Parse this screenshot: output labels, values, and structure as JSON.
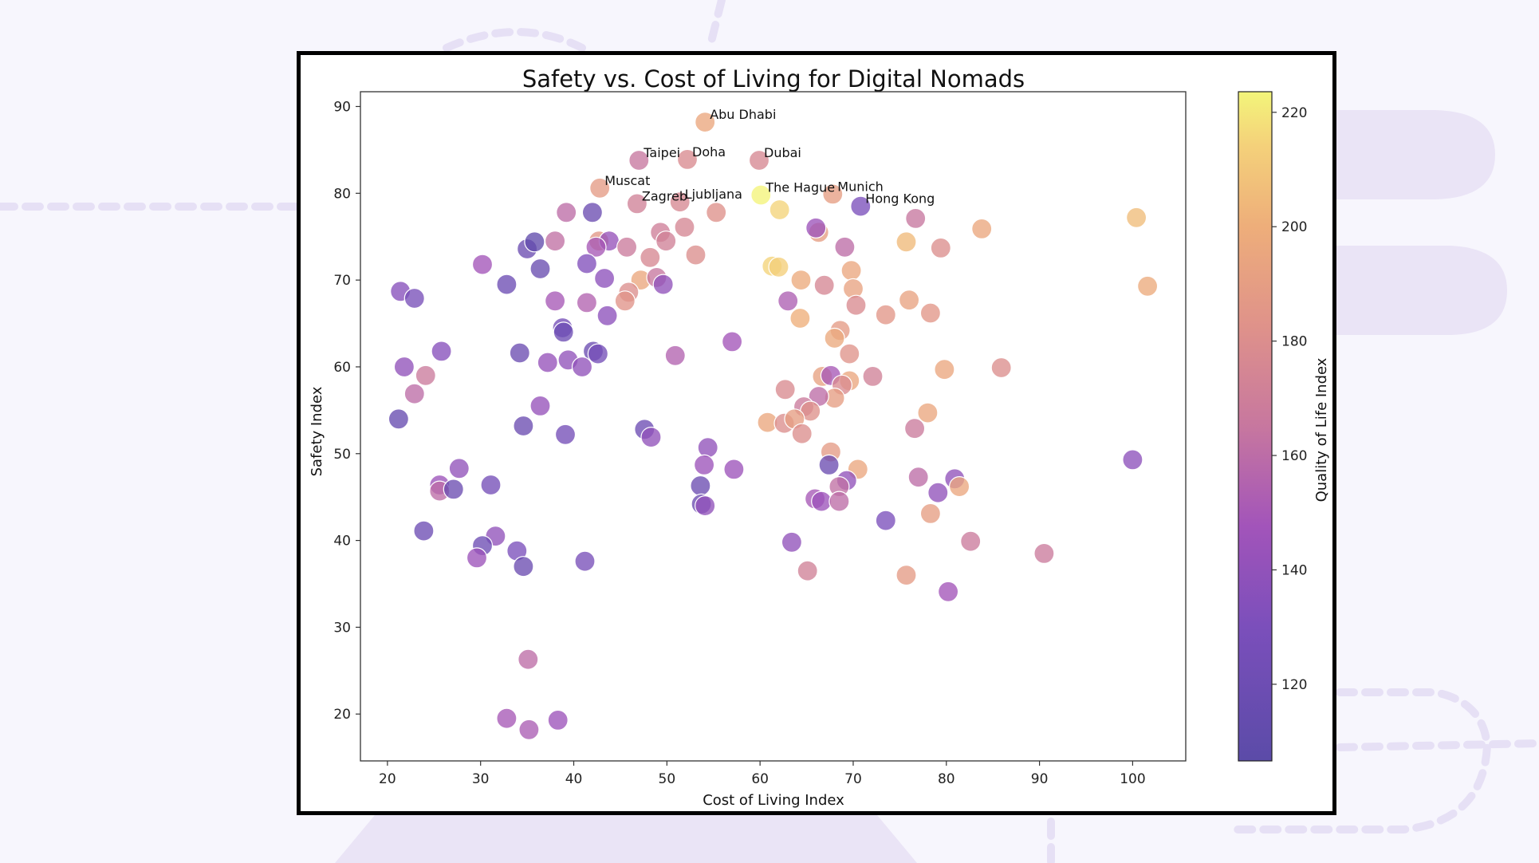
{
  "chart_data": {
    "type": "scatter",
    "title": "Safety vs. Cost of Living for Digital Nomads",
    "xlabel": "Cost of Living Index",
    "ylabel": "Safety Index",
    "colorbar_label": "Quality of Life Index",
    "xlim": [
      17.1,
      105.7
    ],
    "ylim": [
      14.6,
      91.7
    ],
    "clim": [
      106.6,
      223.6
    ],
    "xticks": [
      20,
      30,
      40,
      50,
      60,
      70,
      80,
      90,
      100
    ],
    "yticks": [
      20,
      30,
      40,
      50,
      60,
      70,
      80,
      90
    ],
    "cticks": [
      120,
      140,
      160,
      180,
      200,
      220
    ],
    "colormap": "plasma",
    "grid": false,
    "annotations": [
      {
        "label": "Abu Dhabi",
        "x": 54.1,
        "y": 88.2
      },
      {
        "label": "Taipei",
        "x": 47.0,
        "y": 83.8
      },
      {
        "label": "Doha",
        "x": 52.2,
        "y": 83.9
      },
      {
        "label": "Dubai",
        "x": 59.9,
        "y": 83.8
      },
      {
        "label": "Muscat",
        "x": 42.8,
        "y": 80.6
      },
      {
        "label": "Zagreb",
        "x": 46.8,
        "y": 78.8
      },
      {
        "label": "Ljubljana",
        "x": 51.4,
        "y": 79.0
      },
      {
        "label": "The Hague",
        "x": 60.1,
        "y": 79.8
      },
      {
        "label": "Munich",
        "x": 67.8,
        "y": 79.9
      },
      {
        "label": "Hong Kong",
        "x": 70.8,
        "y": 78.5
      }
    ],
    "points": [
      {
        "x": 54.1,
        "y": 88.2,
        "q": 196
      },
      {
        "x": 47.0,
        "y": 83.8,
        "q": 165
      },
      {
        "x": 52.2,
        "y": 83.9,
        "q": 178
      },
      {
        "x": 59.9,
        "y": 83.8,
        "q": 176
      },
      {
        "x": 42.8,
        "y": 80.6,
        "q": 188
      },
      {
        "x": 46.8,
        "y": 78.8,
        "q": 172
      },
      {
        "x": 51.4,
        "y": 79.0,
        "q": 176
      },
      {
        "x": 60.1,
        "y": 79.8,
        "q": 223
      },
      {
        "x": 67.8,
        "y": 79.9,
        "q": 190
      },
      {
        "x": 70.8,
        "y": 78.5,
        "q": 130
      },
      {
        "x": 62.1,
        "y": 78.1,
        "q": 215
      },
      {
        "x": 39.2,
        "y": 77.8,
        "q": 160
      },
      {
        "x": 42.0,
        "y": 77.8,
        "q": 118
      },
      {
        "x": 55.3,
        "y": 77.8,
        "q": 182
      },
      {
        "x": 76.7,
        "y": 77.1,
        "q": 165
      },
      {
        "x": 100.4,
        "y": 77.2,
        "q": 206
      },
      {
        "x": 83.8,
        "y": 75.9,
        "q": 196
      },
      {
        "x": 66.3,
        "y": 75.5,
        "q": 190
      },
      {
        "x": 66.0,
        "y": 76.0,
        "q": 145
      },
      {
        "x": 38.0,
        "y": 74.5,
        "q": 162
      },
      {
        "x": 42.7,
        "y": 74.5,
        "q": 186
      },
      {
        "x": 43.8,
        "y": 74.5,
        "q": 142
      },
      {
        "x": 42.4,
        "y": 73.8,
        "q": 150
      },
      {
        "x": 45.7,
        "y": 73.8,
        "q": 168
      },
      {
        "x": 49.3,
        "y": 75.5,
        "q": 170
      },
      {
        "x": 51.9,
        "y": 76.1,
        "q": 175
      },
      {
        "x": 49.9,
        "y": 74.5,
        "q": 172
      },
      {
        "x": 35.0,
        "y": 73.6,
        "q": 118
      },
      {
        "x": 35.8,
        "y": 74.4,
        "q": 112
      },
      {
        "x": 48.2,
        "y": 72.6,
        "q": 176
      },
      {
        "x": 53.1,
        "y": 72.9,
        "q": 180
      },
      {
        "x": 69.1,
        "y": 73.8,
        "q": 160
      },
      {
        "x": 75.7,
        "y": 74.4,
        "q": 205
      },
      {
        "x": 79.4,
        "y": 73.7,
        "q": 180
      },
      {
        "x": 30.2,
        "y": 71.8,
        "q": 148
      },
      {
        "x": 36.4,
        "y": 71.3,
        "q": 117
      },
      {
        "x": 41.4,
        "y": 71.9,
        "q": 133
      },
      {
        "x": 43.3,
        "y": 70.2,
        "q": 138
      },
      {
        "x": 47.2,
        "y": 70.0,
        "q": 196
      },
      {
        "x": 48.9,
        "y": 70.3,
        "q": 165
      },
      {
        "x": 49.6,
        "y": 69.5,
        "q": 140
      },
      {
        "x": 61.3,
        "y": 71.6,
        "q": 215
      },
      {
        "x": 62.0,
        "y": 71.5,
        "q": 213
      },
      {
        "x": 64.4,
        "y": 70.0,
        "q": 198
      },
      {
        "x": 69.8,
        "y": 71.1,
        "q": 195
      },
      {
        "x": 66.9,
        "y": 69.4,
        "q": 175
      },
      {
        "x": 70.0,
        "y": 69.0,
        "q": 193
      },
      {
        "x": 70.3,
        "y": 67.1,
        "q": 178
      },
      {
        "x": 63.0,
        "y": 67.6,
        "q": 153
      },
      {
        "x": 64.3,
        "y": 65.6,
        "q": 200
      },
      {
        "x": 101.6,
        "y": 69.3,
        "q": 198
      },
      {
        "x": 76.0,
        "y": 67.7,
        "q": 193
      },
      {
        "x": 78.3,
        "y": 66.2,
        "q": 185
      },
      {
        "x": 73.5,
        "y": 66.0,
        "q": 185
      },
      {
        "x": 32.8,
        "y": 69.5,
        "q": 120
      },
      {
        "x": 21.4,
        "y": 68.7,
        "q": 135
      },
      {
        "x": 22.9,
        "y": 67.9,
        "q": 128
      },
      {
        "x": 38.0,
        "y": 67.6,
        "q": 150
      },
      {
        "x": 41.4,
        "y": 67.4,
        "q": 155
      },
      {
        "x": 45.9,
        "y": 68.6,
        "q": 180
      },
      {
        "x": 45.5,
        "y": 67.6,
        "q": 184
      },
      {
        "x": 43.6,
        "y": 65.9,
        "q": 138
      },
      {
        "x": 38.8,
        "y": 64.5,
        "q": 125
      },
      {
        "x": 38.9,
        "y": 64.0,
        "q": 120
      },
      {
        "x": 57.0,
        "y": 62.9,
        "q": 148
      },
      {
        "x": 68.6,
        "y": 64.2,
        "q": 188
      },
      {
        "x": 68.0,
        "y": 63.3,
        "q": 197
      },
      {
        "x": 69.6,
        "y": 61.5,
        "q": 183
      },
      {
        "x": 50.9,
        "y": 61.3,
        "q": 155
      },
      {
        "x": 25.8,
        "y": 61.8,
        "q": 135
      },
      {
        "x": 34.2,
        "y": 61.6,
        "q": 118
      },
      {
        "x": 42.1,
        "y": 61.8,
        "q": 118
      },
      {
        "x": 42.6,
        "y": 61.5,
        "q": 125
      },
      {
        "x": 21.8,
        "y": 60.0,
        "q": 140
      },
      {
        "x": 37.2,
        "y": 60.5,
        "q": 142
      },
      {
        "x": 39.4,
        "y": 60.8,
        "q": 140
      },
      {
        "x": 40.9,
        "y": 60.0,
        "q": 140
      },
      {
        "x": 24.1,
        "y": 59.0,
        "q": 168
      },
      {
        "x": 22.9,
        "y": 56.9,
        "q": 160
      },
      {
        "x": 79.8,
        "y": 59.7,
        "q": 195
      },
      {
        "x": 85.9,
        "y": 59.9,
        "q": 180
      },
      {
        "x": 72.1,
        "y": 58.9,
        "q": 172
      },
      {
        "x": 66.7,
        "y": 58.9,
        "q": 192
      },
      {
        "x": 67.6,
        "y": 59.0,
        "q": 150
      },
      {
        "x": 69.6,
        "y": 58.4,
        "q": 195
      },
      {
        "x": 68.8,
        "y": 57.9,
        "q": 178
      },
      {
        "x": 68.0,
        "y": 56.4,
        "q": 190
      },
      {
        "x": 62.7,
        "y": 57.4,
        "q": 178
      },
      {
        "x": 66.3,
        "y": 56.6,
        "q": 160
      },
      {
        "x": 64.7,
        "y": 55.4,
        "q": 168
      },
      {
        "x": 65.4,
        "y": 54.9,
        "q": 182
      },
      {
        "x": 60.8,
        "y": 53.6,
        "q": 196
      },
      {
        "x": 62.6,
        "y": 53.5,
        "q": 180
      },
      {
        "x": 63.7,
        "y": 54.0,
        "q": 190
      },
      {
        "x": 64.5,
        "y": 52.3,
        "q": 180
      },
      {
        "x": 67.6,
        "y": 50.2,
        "q": 188
      },
      {
        "x": 78.0,
        "y": 54.7,
        "q": 195
      },
      {
        "x": 76.6,
        "y": 52.9,
        "q": 168
      },
      {
        "x": 36.4,
        "y": 55.5,
        "q": 142
      },
      {
        "x": 21.2,
        "y": 54.0,
        "q": 115
      },
      {
        "x": 34.6,
        "y": 53.2,
        "q": 118
      },
      {
        "x": 39.1,
        "y": 52.2,
        "q": 125
      },
      {
        "x": 47.6,
        "y": 52.8,
        "q": 120
      },
      {
        "x": 48.3,
        "y": 51.9,
        "q": 140
      },
      {
        "x": 54.4,
        "y": 50.7,
        "q": 140
      },
      {
        "x": 67.4,
        "y": 48.7,
        "q": 118
      },
      {
        "x": 70.5,
        "y": 48.2,
        "q": 195
      },
      {
        "x": 100.0,
        "y": 49.3,
        "q": 138
      },
      {
        "x": 27.7,
        "y": 48.3,
        "q": 140
      },
      {
        "x": 54.0,
        "y": 48.7,
        "q": 145
      },
      {
        "x": 57.2,
        "y": 48.2,
        "q": 145
      },
      {
        "x": 77.0,
        "y": 47.3,
        "q": 160
      },
      {
        "x": 80.9,
        "y": 47.1,
        "q": 140
      },
      {
        "x": 81.4,
        "y": 46.2,
        "q": 195
      },
      {
        "x": 69.3,
        "y": 46.9,
        "q": 140
      },
      {
        "x": 68.5,
        "y": 46.2,
        "q": 162
      },
      {
        "x": 79.1,
        "y": 45.5,
        "q": 140
      },
      {
        "x": 25.6,
        "y": 46.4,
        "q": 145
      },
      {
        "x": 25.6,
        "y": 45.7,
        "q": 160
      },
      {
        "x": 27.1,
        "y": 45.9,
        "q": 118
      },
      {
        "x": 31.1,
        "y": 46.4,
        "q": 125
      },
      {
        "x": 53.6,
        "y": 46.3,
        "q": 118
      },
      {
        "x": 53.7,
        "y": 44.2,
        "q": 118
      },
      {
        "x": 54.1,
        "y": 44.0,
        "q": 140
      },
      {
        "x": 65.9,
        "y": 44.8,
        "q": 150
      },
      {
        "x": 66.6,
        "y": 44.5,
        "q": 145
      },
      {
        "x": 68.5,
        "y": 44.5,
        "q": 160
      },
      {
        "x": 78.3,
        "y": 43.1,
        "q": 190
      },
      {
        "x": 73.5,
        "y": 42.3,
        "q": 130
      },
      {
        "x": 23.9,
        "y": 41.1,
        "q": 120
      },
      {
        "x": 31.6,
        "y": 40.5,
        "q": 140
      },
      {
        "x": 30.2,
        "y": 39.4,
        "q": 120
      },
      {
        "x": 29.6,
        "y": 38.0,
        "q": 145
      },
      {
        "x": 33.9,
        "y": 38.8,
        "q": 130
      },
      {
        "x": 34.6,
        "y": 37.0,
        "q": 118
      },
      {
        "x": 41.2,
        "y": 37.6,
        "q": 128
      },
      {
        "x": 63.4,
        "y": 39.8,
        "q": 140
      },
      {
        "x": 82.6,
        "y": 39.9,
        "q": 168
      },
      {
        "x": 90.5,
        "y": 38.5,
        "q": 168
      },
      {
        "x": 65.1,
        "y": 36.5,
        "q": 172
      },
      {
        "x": 75.7,
        "y": 36.0,
        "q": 188
      },
      {
        "x": 80.2,
        "y": 34.1,
        "q": 148
      },
      {
        "x": 35.1,
        "y": 26.3,
        "q": 160
      },
      {
        "x": 32.8,
        "y": 19.5,
        "q": 150
      },
      {
        "x": 35.2,
        "y": 18.2,
        "q": 152
      },
      {
        "x": 38.3,
        "y": 19.3,
        "q": 145
      }
    ]
  }
}
